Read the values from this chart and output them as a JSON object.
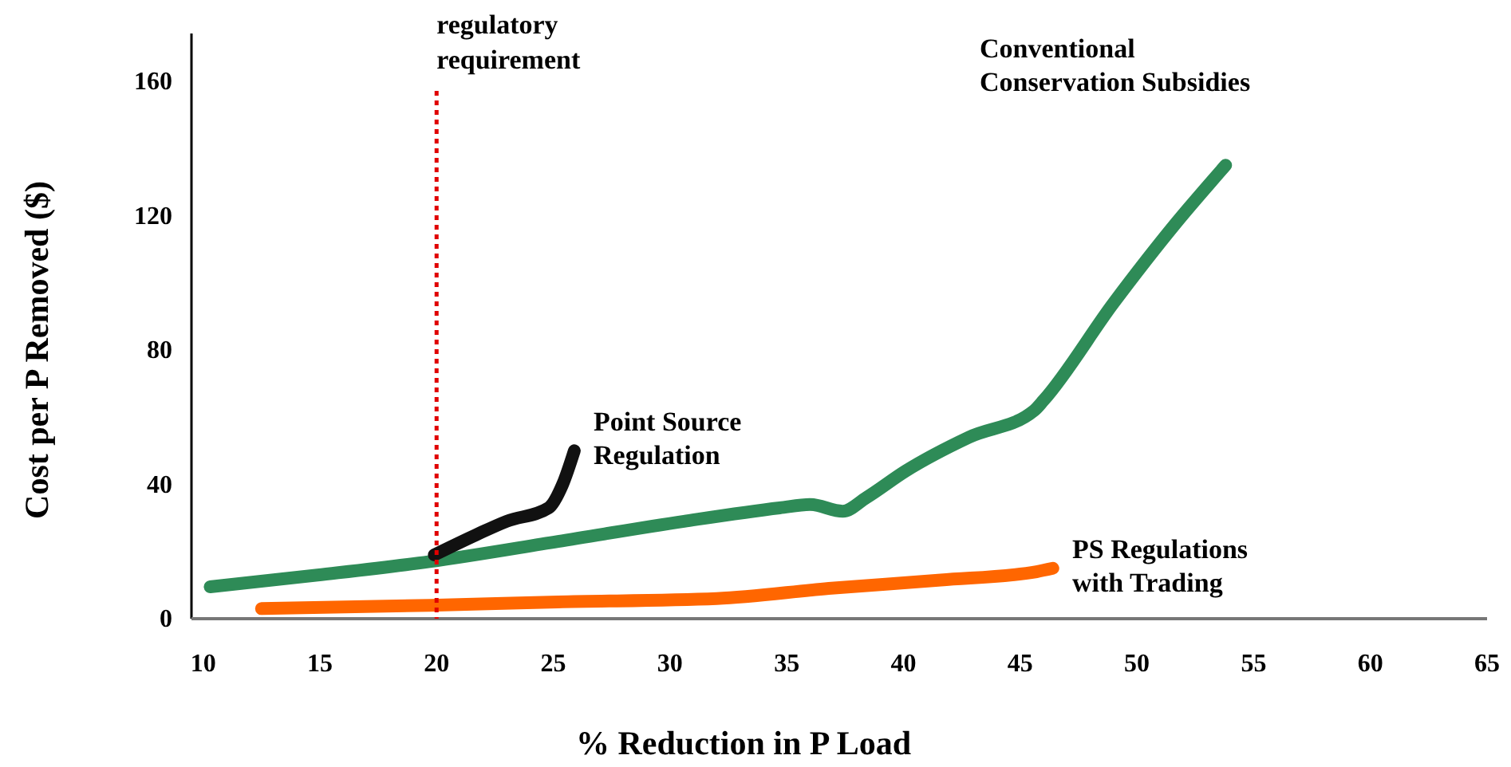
{
  "chart_data": {
    "type": "line",
    "xlabel": "% Reduction in P Load",
    "ylabel": "Cost per P Removed ($)",
    "xlim": [
      9.5,
      65
    ],
    "xticks": [
      10,
      15,
      20,
      25,
      30,
      35,
      40,
      45,
      50,
      55,
      60,
      65
    ],
    "ylim": [
      0,
      160
    ],
    "yticks": [
      0,
      40,
      80,
      120,
      160
    ],
    "grid": false,
    "marker": "none",
    "line_style": "solid",
    "series": [
      {
        "name": "Conventional\nConservation Subsidies",
        "color": "#2e8b57",
        "x": [
          10.3,
          14.9,
          19.7,
          25.2,
          30.6,
          34.7,
          36,
          37.4,
          38.4,
          40.1,
          42.8,
          45.6,
          46,
          49,
          51.7,
          53.8
        ],
        "values": [
          9.5,
          13,
          17,
          23,
          29,
          33,
          34,
          32,
          36,
          44,
          54,
          62,
          65,
          94,
          118,
          135
        ]
      },
      {
        "name": "Point Source\nRegulation",
        "color": "#111111",
        "x": [
          19.9,
          21.7,
          23,
          24.8,
          25.4,
          25.9
        ],
        "values": [
          19,
          25,
          29,
          33,
          40,
          50
        ]
      },
      {
        "name": "PS Regulations\nwith Trading",
        "color": "#ff6600",
        "x": [
          12.5,
          19.7,
          25.2,
          32,
          36.8,
          41.6,
          45.7,
          46.4
        ],
        "values": [
          3,
          4,
          5,
          6,
          9,
          11.5,
          14,
          15
        ]
      }
    ],
    "ref_lines": [
      {
        "axis": "x",
        "value": 20,
        "label": "regulatory\nrequirement",
        "color": "#e00000",
        "line_style": "dotted"
      }
    ]
  }
}
